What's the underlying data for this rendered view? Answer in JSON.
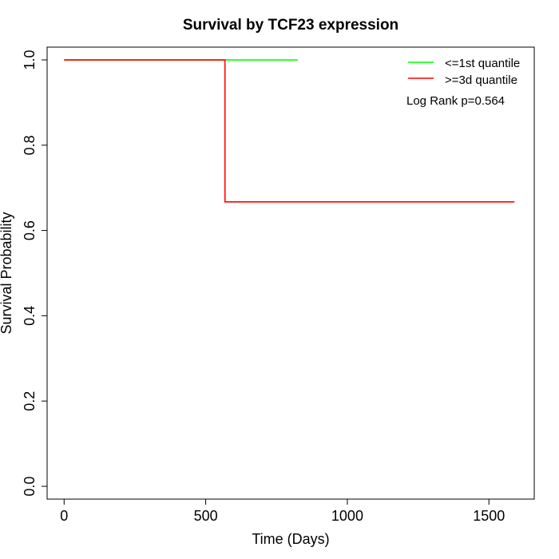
{
  "chart_data": {
    "type": "line",
    "title": "Survival by TCF23 expression",
    "xlabel": "Time (Days)",
    "ylabel": "Survival Probability",
    "xlim": [
      -60,
      1660
    ],
    "ylim": [
      -0.03,
      1.03
    ],
    "x_ticks": [
      0,
      500,
      1000,
      1500
    ],
    "y_ticks": [
      0.0,
      0.2,
      0.4,
      0.6,
      0.8,
      1.0
    ],
    "x_tick_labels": [
      "0",
      "500",
      "1000",
      "1500"
    ],
    "y_tick_labels": [
      "0.0",
      "0.2",
      "0.4",
      "0.6",
      "0.8",
      "1.0"
    ],
    "grid": false,
    "legend_position": "top-right",
    "series": [
      {
        "name": "<=1st quantile",
        "color": "#00ff00",
        "step": true,
        "x": [
          0,
          825
        ],
        "y": [
          1.0,
          1.0
        ]
      },
      {
        "name": ">=3d quantile",
        "color": "#ff0000",
        "step": true,
        "x": [
          0,
          568,
          568,
          1590
        ],
        "y": [
          1.0,
          1.0,
          0.667,
          0.667
        ]
      }
    ],
    "annotations": [
      "Log Rank p=0.564"
    ]
  }
}
